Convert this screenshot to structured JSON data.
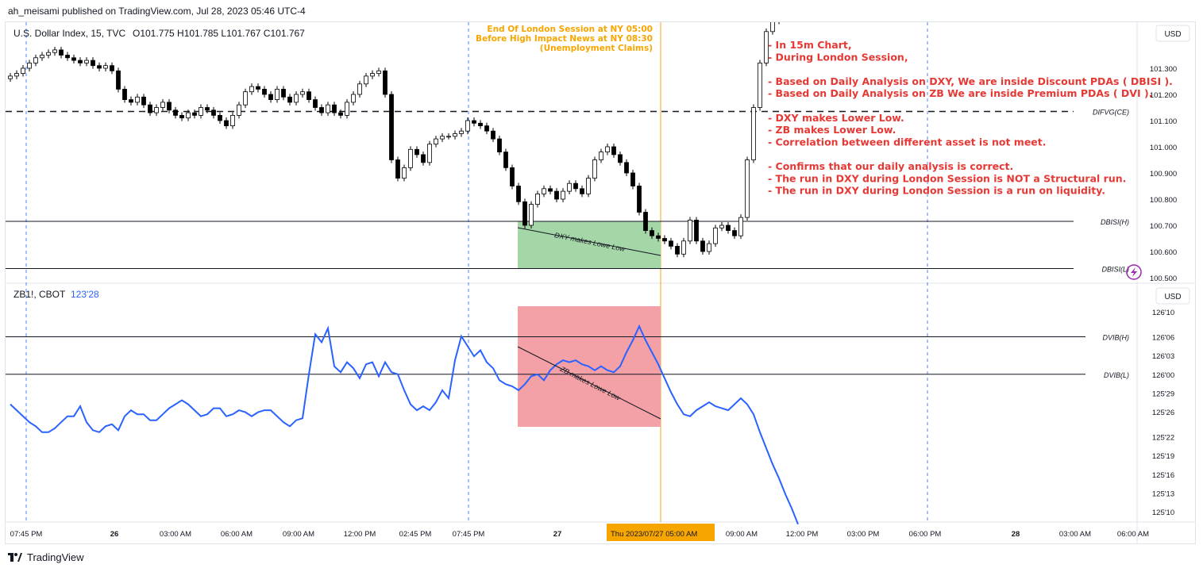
{
  "header": {
    "published_by": "ah_meisami published on TradingView.com, Jul 28, 2023 05:46 UTC-4"
  },
  "footer": {
    "brand": "TradingView"
  },
  "colors": {
    "up_candle": "#ffffff",
    "down_candle": "#000000",
    "zb_line": "#2962ff",
    "annotation_red": "#e53935",
    "annotation_orange": "#f7a600",
    "green_box": "#a5d6a7",
    "red_box": "#f4a0a7",
    "session_line": "#f5b342"
  },
  "chart_data": [
    {
      "type": "candlestick",
      "name_label": "U.S. Dollar Index, 15, TVC",
      "ohlc_label": "O101.775  H101.785  L101.767  C101.767",
      "currency": "USD",
      "y_ticks": [
        "101.300",
        "101.200",
        "101.100",
        "101.000",
        "100.900",
        "100.800",
        "100.700",
        "100.600",
        "100.500"
      ],
      "ylim": [
        100.48,
        101.38
      ],
      "levels": [
        {
          "label": "DIFVG(CE)",
          "value": 101.135,
          "style": "dashed"
        },
        {
          "label": "DBISI(H)",
          "value": 100.715,
          "style": "solid"
        },
        {
          "label": "DBISI(L)",
          "value": 100.535,
          "style": "solid"
        }
      ],
      "closes": [
        101.27,
        101.28,
        101.3,
        101.32,
        101.34,
        101.35,
        101.36,
        101.37,
        101.35,
        101.34,
        101.33,
        101.32,
        101.33,
        101.31,
        101.3,
        101.31,
        101.29,
        101.22,
        101.18,
        101.17,
        101.19,
        101.16,
        101.13,
        101.15,
        101.17,
        101.14,
        101.12,
        101.11,
        101.13,
        101.12,
        101.15,
        101.14,
        101.12,
        101.1,
        101.08,
        101.12,
        101.16,
        101.21,
        101.23,
        101.22,
        101.2,
        101.18,
        101.22,
        101.19,
        101.17,
        101.2,
        101.21,
        101.18,
        101.15,
        101.13,
        101.16,
        101.13,
        101.12,
        101.17,
        101.2,
        101.24,
        101.27,
        101.28,
        101.29,
        101.2,
        100.95,
        100.88,
        100.92,
        100.99,
        100.97,
        100.94,
        101.01,
        101.03,
        101.04,
        101.04,
        101.05,
        101.06,
        101.1,
        101.09,
        101.08,
        101.06,
        101.03,
        100.98,
        100.92,
        100.85,
        100.79,
        100.7,
        100.78,
        100.82,
        100.84,
        100.83,
        100.8,
        100.83,
        100.86,
        100.84,
        100.82,
        100.88,
        100.95,
        100.98,
        101.0,
        100.97,
        100.94,
        100.9,
        100.85,
        100.75,
        100.68,
        100.66,
        100.65,
        100.64,
        100.62,
        100.59,
        100.64,
        100.72,
        100.64,
        100.6,
        100.63,
        100.69,
        100.7,
        100.68,
        100.66,
        100.73,
        100.95,
        101.15,
        101.32,
        101.44,
        101.48,
        101.52
      ],
      "x_ticks": [
        "07:45 PM",
        "26",
        "03:00 AM",
        "06:00 AM",
        "09:00 AM",
        "12:00 PM",
        "02:45 PM",
        "07:45 PM",
        "27",
        "Thu 2023/07/27",
        "05:00 AM",
        "09:00 AM",
        "12:00 PM",
        "03:00 PM",
        "06:00 PM",
        "28",
        "03:00 AM",
        "06:00 AM"
      ],
      "highlight_box": {
        "label": "DXY makes Lowe Low",
        "color": "green"
      },
      "session_note": [
        "End Of London Session at NY 05:00",
        "Before High Impact News at NY 08:30",
        "(Unemployment Claims)"
      ],
      "annotations": [
        "- In 15m Chart,",
        "- During London Session,",
        "",
        "- Based on Daily Analysis on DXY, We are inside Discount PDAs ( DBISI ).",
        "- Based on Daily Analysis on ZB We are inside Premium PDAs ( DVI ).",
        "",
        "- DXY makes Lower Low.",
        "- ZB makes Lower Low.",
        "- Correlation between different asset is not meet.",
        "",
        "- Confirms that our daily analysis is correct.",
        "- The run in DXY during London Session is NOT a Structural run.",
        "- The run in DXY during London Session is a run on liquidity."
      ]
    },
    {
      "type": "line",
      "name_label": "ZB1!, CBOT",
      "last_value": "123'28",
      "currency": "USD",
      "y_ticks": [
        "126'10",
        "126'06",
        "126'03",
        "126'00",
        "125'29",
        "125'26",
        "125'22",
        "125'19",
        "125'16",
        "125'13",
        "125'10"
      ],
      "levels": [
        {
          "label": "DVIB(H)",
          "value": "126'06"
        },
        {
          "label": "DVIB(L)",
          "value": "126'00"
        }
      ],
      "values": [
        125.85,
        125.82,
        125.79,
        125.76,
        125.74,
        125.71,
        125.71,
        125.73,
        125.76,
        125.79,
        125.79,
        125.84,
        125.76,
        125.72,
        125.71,
        125.74,
        125.75,
        125.72,
        125.79,
        125.82,
        125.8,
        125.8,
        125.77,
        125.77,
        125.8,
        125.83,
        125.85,
        125.87,
        125.85,
        125.82,
        125.79,
        125.8,
        125.83,
        125.83,
        125.79,
        125.8,
        125.82,
        125.81,
        125.79,
        125.81,
        125.82,
        125.82,
        125.79,
        125.76,
        125.74,
        125.77,
        125.78,
        126.0,
        126.2,
        126.16,
        126.23,
        126.04,
        126.01,
        126.06,
        126.03,
        125.98,
        126.05,
        126.06,
        125.99,
        126.06,
        126.01,
        126.0,
        125.92,
        125.85,
        125.82,
        125.84,
        125.82,
        125.86,
        125.92,
        125.88,
        126.07,
        126.19,
        126.14,
        126.09,
        126.12,
        126.06,
        126.03,
        125.97,
        125.95,
        125.94,
        125.92,
        125.95,
        125.99,
        126.0,
        125.97,
        126.02,
        126.05,
        126.07,
        126.06,
        126.07,
        126.05,
        126.04,
        126.02,
        126.04,
        126.02,
        126.01,
        126.04,
        126.11,
        126.17,
        126.24,
        126.17,
        126.11,
        126.05,
        125.98,
        125.91,
        125.85,
        125.8,
        125.79,
        125.82,
        125.84,
        125.86,
        125.84,
        125.83,
        125.82,
        125.85,
        125.88,
        125.85,
        125.8,
        125.71,
        125.63,
        125.55,
        125.48,
        125.4,
        125.33,
        125.25
      ]
    }
  ],
  "zb_note": "ZB makes Lowe Low"
}
